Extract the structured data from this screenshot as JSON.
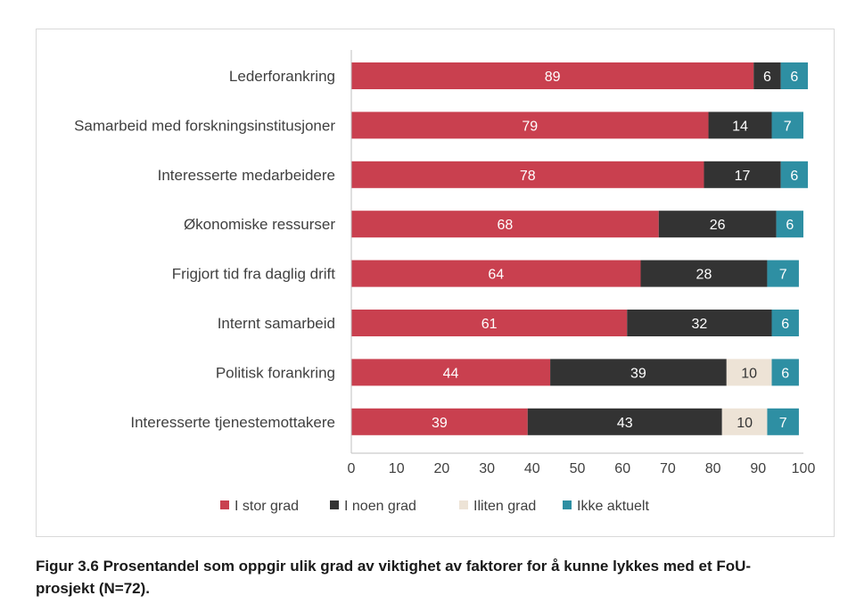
{
  "chart_data": {
    "type": "bar",
    "orientation": "horizontal",
    "stacked": true,
    "categories": [
      "Lederforankring",
      "Samarbeid med forskningsinstitusjoner",
      "Interesserte medarbeidere",
      "Økonomiske ressurser",
      "Frigjort tid fra daglig drift",
      "Internt samarbeid",
      "Politisk forankring",
      "Interesserte tjenestemottakere"
    ],
    "series": [
      {
        "name": "I stor grad",
        "color": "#c9404f",
        "label_color": "#ffffff",
        "values": [
          89,
          79,
          78,
          68,
          64,
          61,
          44,
          39
        ]
      },
      {
        "name": "I noen grad",
        "color": "#333333",
        "label_color": "#ffffff",
        "values": [
          6,
          14,
          17,
          26,
          28,
          32,
          39,
          43
        ]
      },
      {
        "name": "Iliten grad",
        "color": "#ede3d6",
        "label_color": "#333333",
        "values": [
          0,
          0,
          0,
          0,
          0,
          0,
          10,
          10
        ]
      },
      {
        "name": "Ikke aktuelt",
        "color": "#2e8fa3",
        "label_color": "#ffffff",
        "values": [
          6,
          7,
          6,
          6,
          7,
          6,
          6,
          7
        ]
      }
    ],
    "xlim": [
      0,
      100
    ],
    "xticks": [
      "0",
      "10",
      "20",
      "30",
      "40",
      "50",
      "60",
      "70",
      "80",
      "90",
      "100"
    ],
    "legend_position": "bottom",
    "grid": false
  },
  "caption": "Figur 3.6 Prosentandel som oppgir ulik grad av viktighet av faktorer for å kunne lykkes med et FoU-prosjekt (N=72)."
}
